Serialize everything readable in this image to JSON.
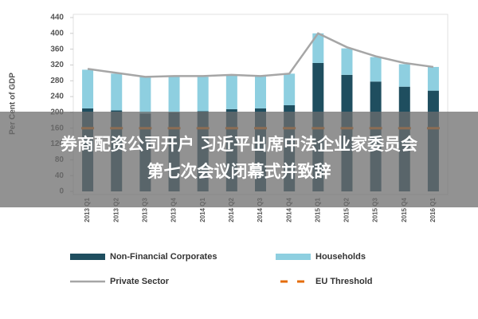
{
  "chart_data": {
    "type": "bar",
    "y_label": "Per Cent of GDP",
    "categories": [
      "2013 Q1",
      "2013 Q2",
      "2013 Q3",
      "2013 Q4",
      "2014 Q1",
      "2014 Q2",
      "2014 Q3",
      "2014 Q4",
      "2015 Q1",
      "2015 Q2",
      "2015 Q3",
      "2015 Q4",
      "2016 Q1"
    ],
    "series": [
      {
        "name": "Non-Financial Corporates",
        "color": "#1f4e5f",
        "values": [
          210,
          205,
          197,
          200,
          203,
          208,
          210,
          218,
          325,
          295,
          278,
          265,
          255
        ]
      },
      {
        "name": "Households",
        "color": "#8ecfe0",
        "values": [
          98,
          93,
          93,
          90,
          87,
          85,
          82,
          80,
          75,
          67,
          62,
          57,
          60
        ]
      },
      {
        "name": "Private Sector",
        "color": "#a6a6a6",
        "type": "line",
        "values": [
          310,
          300,
          290,
          292,
          292,
          295,
          292,
          298,
          400,
          365,
          342,
          325,
          315
        ]
      },
      {
        "name": "EU Threshold",
        "color": "#e46c0a",
        "type": "dash",
        "values": [
          160,
          160,
          160,
          160,
          160,
          160,
          160,
          160,
          160,
          160,
          160,
          160,
          160
        ]
      }
    ],
    "ylim": [
      0,
      440
    ],
    "yticks": [
      0,
      40,
      80,
      120,
      160,
      200,
      240,
      280,
      320,
      360,
      400,
      440
    ],
    "grid": false
  },
  "overlay": {
    "lines": [
      "券商配资公司开户 习近平出席中法企业家委员会",
      "第七次会议闭幕式并致辞"
    ]
  }
}
